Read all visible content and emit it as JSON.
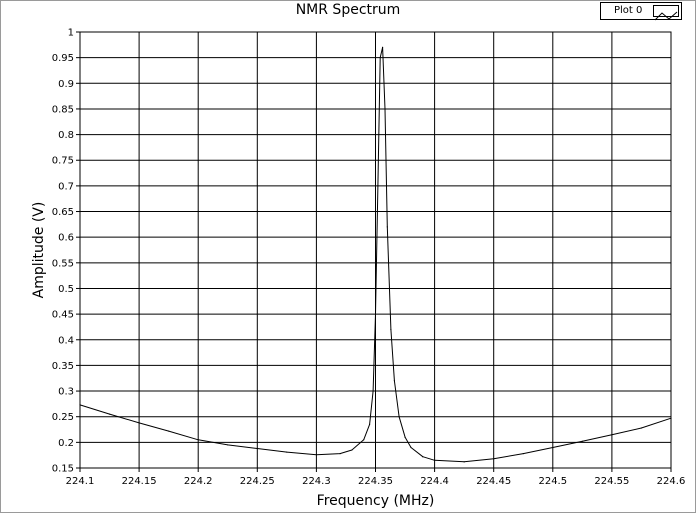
{
  "chart_data": {
    "type": "line",
    "title": "NMR Spectrum",
    "xlabel": "Frequency (MHz)",
    "ylabel": "Amplitude (V)",
    "xlim": [
      224.1,
      224.6
    ],
    "ylim": [
      0.15,
      1.0
    ],
    "x_ticks": [
      "224.1",
      "224.15",
      "224.2",
      "224.25",
      "224.3",
      "224.35",
      "224.4",
      "224.45",
      "224.5",
      "224.55",
      "224.6"
    ],
    "y_ticks": [
      "1",
      "0.95",
      "0.9",
      "0.85",
      "0.8",
      "0.75",
      "0.7",
      "0.65",
      "0.6",
      "0.55",
      "0.5",
      "0.45",
      "0.4",
      "0.35",
      "0.3",
      "0.25",
      "0.2",
      "0.15"
    ],
    "grid": true,
    "legend": {
      "position": "top-right"
    },
    "series": [
      {
        "name": "Plot 0",
        "color": "#000000",
        "x": [
          224.1,
          224.125,
          224.15,
          224.175,
          224.2,
          224.225,
          224.25,
          224.275,
          224.3,
          224.32,
          224.33,
          224.34,
          224.345,
          224.348,
          224.35,
          224.352,
          224.354,
          224.356,
          224.358,
          224.36,
          224.363,
          224.366,
          224.37,
          224.375,
          224.38,
          224.39,
          224.4,
          224.425,
          224.45,
          224.475,
          224.5,
          224.525,
          224.55,
          224.575,
          224.6
        ],
        "y": [
          0.273,
          0.255,
          0.238,
          0.222,
          0.205,
          0.195,
          0.188,
          0.181,
          0.176,
          0.178,
          0.185,
          0.205,
          0.235,
          0.3,
          0.45,
          0.7,
          0.95,
          0.97,
          0.85,
          0.62,
          0.42,
          0.32,
          0.25,
          0.21,
          0.19,
          0.172,
          0.165,
          0.162,
          0.168,
          0.178,
          0.19,
          0.202,
          0.215,
          0.228,
          0.247
        ]
      }
    ]
  }
}
